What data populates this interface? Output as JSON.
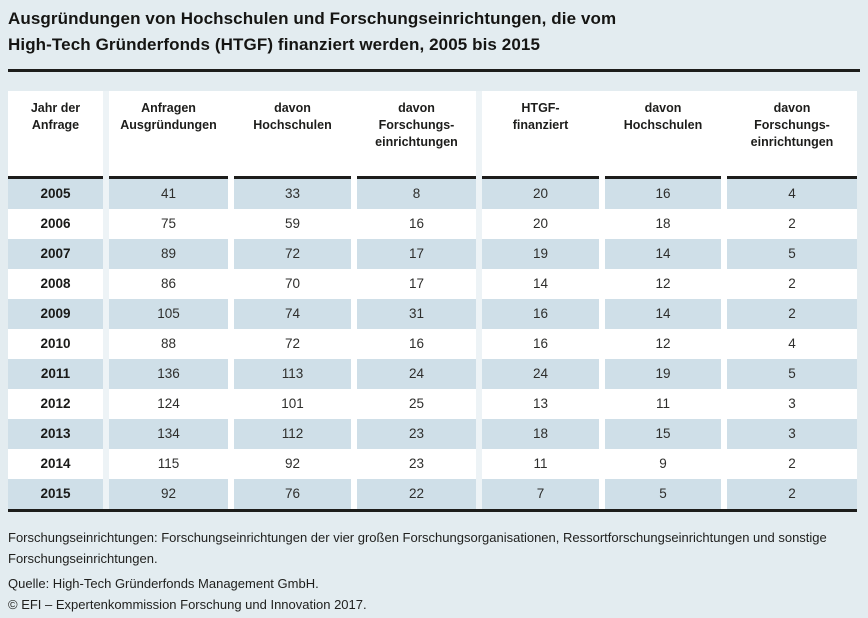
{
  "title": "Ausgründungen von Hochschulen und Forschungseinrichtungen, die vom\nHigh-Tech Gründerfonds (HTGF) finanziert werden, 2005 bis 2015",
  "table": {
    "columns": [
      "Jahr der\nAnfrage",
      "Anfragen\nAusgründungen",
      "davon\nHochschulen",
      "davon\nForschungs-\neinrichtungen",
      "HTGF-\nfinanziert",
      "davon\nHochschulen",
      "davon\nForschungs-\neinrichtungen"
    ],
    "rows": [
      {
        "year": "2005",
        "values": [
          41,
          33,
          8,
          20,
          16,
          4
        ]
      },
      {
        "year": "2006",
        "values": [
          75,
          59,
          16,
          20,
          18,
          2
        ]
      },
      {
        "year": "2007",
        "values": [
          89,
          72,
          17,
          19,
          14,
          5
        ]
      },
      {
        "year": "2008",
        "values": [
          86,
          70,
          17,
          14,
          12,
          2
        ]
      },
      {
        "year": "2009",
        "values": [
          105,
          74,
          31,
          16,
          14,
          2
        ]
      },
      {
        "year": "2010",
        "values": [
          88,
          72,
          16,
          16,
          12,
          4
        ]
      },
      {
        "year": "2011",
        "values": [
          136,
          113,
          24,
          24,
          19,
          5
        ]
      },
      {
        "year": "2012",
        "values": [
          124,
          101,
          25,
          13,
          11,
          3
        ]
      },
      {
        "year": "2013",
        "values": [
          134,
          112,
          23,
          18,
          15,
          3
        ]
      },
      {
        "year": "2014",
        "values": [
          115,
          92,
          23,
          11,
          9,
          2
        ]
      },
      {
        "year": "2015",
        "values": [
          92,
          76,
          22,
          7,
          5,
          2
        ]
      }
    ]
  },
  "footnotes": {
    "note": "Forschungseinrichtungen: Forschungseinrichtungen der vier großen Forschungsorganisationen, Ressortforschungseinrichtungen und sonstige Forschungseinrichtungen.",
    "source": "Quelle: High-Tech Gründerfonds Management GmbH.",
    "copyright": "© EFI – Expertenkommission Forschung und Innovation 2017."
  },
  "colors": {
    "page_background": "#e3ecf0",
    "panel_background": "#ffffff",
    "shaded_row": "#cfdfe8",
    "rule_black": "#1d1d1b"
  },
  "chart_data": {
    "type": "table",
    "title": "Ausgründungen von Hochschulen und Forschungseinrichtungen, die vom High-Tech Gründerfonds (HTGF) finanziert werden, 2005 bis 2015",
    "categories": [
      "2005",
      "2006",
      "2007",
      "2008",
      "2009",
      "2010",
      "2011",
      "2012",
      "2013",
      "2014",
      "2015"
    ],
    "series": [
      {
        "name": "Anfragen Ausgründungen",
        "values": [
          41,
          75,
          89,
          86,
          105,
          88,
          136,
          124,
          134,
          115,
          92
        ]
      },
      {
        "name": "davon Hochschulen",
        "values": [
          33,
          59,
          72,
          70,
          74,
          72,
          113,
          101,
          112,
          92,
          76
        ]
      },
      {
        "name": "davon Forschungseinrichtungen",
        "values": [
          8,
          16,
          17,
          17,
          31,
          16,
          24,
          25,
          23,
          23,
          22
        ]
      },
      {
        "name": "HTGF-finanziert",
        "values": [
          20,
          20,
          19,
          14,
          16,
          16,
          24,
          13,
          18,
          11,
          7
        ]
      },
      {
        "name": "davon Hochschulen",
        "values": [
          16,
          18,
          14,
          12,
          14,
          12,
          19,
          11,
          15,
          9,
          5
        ]
      },
      {
        "name": "davon Forschungseinrichtungen",
        "values": [
          4,
          2,
          5,
          2,
          2,
          4,
          5,
          3,
          3,
          2,
          2
        ]
      }
    ],
    "notes": [
      "Forschungseinrichtungen: Forschungseinrichtungen der vier großen Forschungsorganisationen, Ressortforschungseinrichtungen und sonstige Forschungseinrichtungen.",
      "Quelle: High-Tech Gründerfonds Management GmbH.",
      "© EFI – Expertenkommission Forschung und Innovation 2017."
    ]
  }
}
